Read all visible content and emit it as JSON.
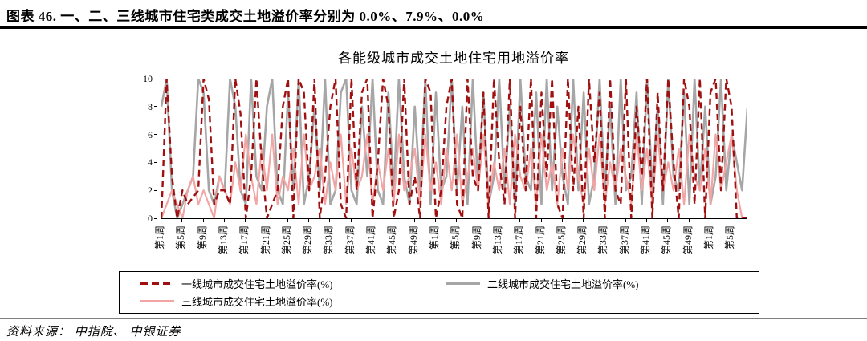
{
  "header": {
    "caption": "图表 46. 一、二、三线城市住宅类成交土地溢价率分别为 0.0%、7.9%、0.0%"
  },
  "footer": {
    "source": "资料来源： 中指院、 中银证券"
  },
  "chart_data": {
    "type": "line",
    "title": "各能级城市成交土地住宅用地溢价率",
    "xlabel": "",
    "ylabel": "",
    "ylim": [
      0,
      10
    ],
    "yticks": [
      0,
      2,
      4,
      6,
      8,
      10
    ],
    "grid": false,
    "legend_position": "bottom",
    "n_points": 112,
    "x_tick_every": 4,
    "x_tick_labels": [
      "第1周",
      "第5周",
      "第9周",
      "第13周",
      "第17周",
      "第21周",
      "第25周",
      "第29周",
      "第33周",
      "第37周",
      "第41周",
      "第45周",
      "第49周",
      "第1周",
      "第5周",
      "第9周",
      "第13周",
      "第17周",
      "第21周",
      "第25周",
      "第29周",
      "第33周",
      "第37周",
      "第41周",
      "第45周",
      "第49周",
      "第1周",
      "第5周"
    ],
    "series": [
      {
        "name": "一线城市成交住宅土地溢价率(%)",
        "color": "#A01010",
        "dash": true,
        "latest_value_pct": 0.0,
        "values": [
          0,
          10,
          3,
          0,
          2,
          1,
          1.5,
          2,
          10,
          8.5,
          1,
          2,
          2,
          1,
          10,
          7.5,
          0,
          3,
          10,
          4,
          0,
          1,
          2,
          8,
          10,
          0,
          10,
          9,
          2,
          10,
          0,
          3,
          8,
          10,
          1,
          0,
          10,
          2,
          9,
          10,
          0,
          4,
          10,
          8,
          0,
          2,
          10,
          1,
          3,
          0,
          10,
          9,
          0,
          2,
          8,
          10,
          1,
          0,
          10,
          3,
          2,
          9,
          0,
          10,
          4,
          1,
          10,
          0,
          8,
          2,
          10,
          0,
          9,
          3,
          10,
          1,
          0,
          10,
          2,
          8,
          0,
          10,
          4,
          9,
          0,
          10,
          2,
          1,
          10,
          0,
          8,
          3,
          10,
          0,
          9,
          2,
          10,
          4,
          0,
          10,
          8,
          1,
          10,
          0,
          9,
          10,
          2,
          10,
          8,
          0,
          0,
          0
        ]
      },
      {
        "name": "二线城市成交住宅土地溢价率(%)",
        "color": "#A6A6A6",
        "dash": false,
        "latest_value_pct": 7.9,
        "values": [
          8,
          10,
          2,
          0,
          1,
          2,
          3,
          10,
          9,
          2,
          1,
          3,
          2,
          10,
          8,
          2,
          1,
          10,
          3,
          2,
          8,
          10,
          2,
          1,
          9,
          2,
          10,
          1,
          3,
          8,
          2,
          10,
          1,
          2,
          9,
          10,
          2,
          1,
          8,
          3,
          10,
          2,
          1,
          9,
          2,
          10,
          3,
          1,
          8,
          2,
          10,
          1,
          9,
          2,
          3,
          10,
          2,
          8,
          1,
          10,
          2,
          9,
          1,
          3,
          10,
          2,
          8,
          1,
          10,
          3,
          2,
          9,
          1,
          10,
          2,
          8,
          3,
          1,
          10,
          2,
          9,
          1,
          3,
          10,
          2,
          8,
          1,
          10,
          2,
          3,
          9,
          1,
          10,
          2,
          8,
          1,
          10,
          3,
          2,
          9,
          1,
          10,
          2,
          8,
          1,
          3,
          10,
          2,
          6,
          4,
          2,
          7.9
        ]
      },
      {
        "name": "三线城市成交住宅土地溢价率(%)",
        "color": "#F2A5A5",
        "dash": false,
        "latest_value_pct": 0.0,
        "values": [
          0,
          1,
          2,
          1,
          0,
          2,
          3,
          1,
          2,
          1,
          0,
          3,
          2,
          1,
          4,
          2,
          6,
          3,
          1,
          5,
          2,
          6,
          1,
          3,
          2,
          5,
          1,
          6,
          2,
          3,
          5,
          1,
          4,
          2,
          6,
          1,
          5,
          2,
          3,
          6,
          1,
          4,
          2,
          5,
          1,
          6,
          2,
          3,
          5,
          1,
          6,
          2,
          4,
          1,
          5,
          2,
          6,
          1,
          3,
          5,
          2,
          6,
          1,
          4,
          2,
          5,
          1,
          6,
          3,
          2,
          5,
          1,
          6,
          2,
          4,
          1,
          5,
          2,
          6,
          3,
          1,
          5,
          2,
          6,
          1,
          4,
          2,
          5,
          3,
          1,
          6,
          2,
          5,
          1,
          6,
          2,
          4,
          2,
          5,
          1,
          6,
          3,
          2,
          5,
          1,
          6,
          2,
          4,
          6,
          2,
          0,
          0
        ]
      }
    ]
  }
}
